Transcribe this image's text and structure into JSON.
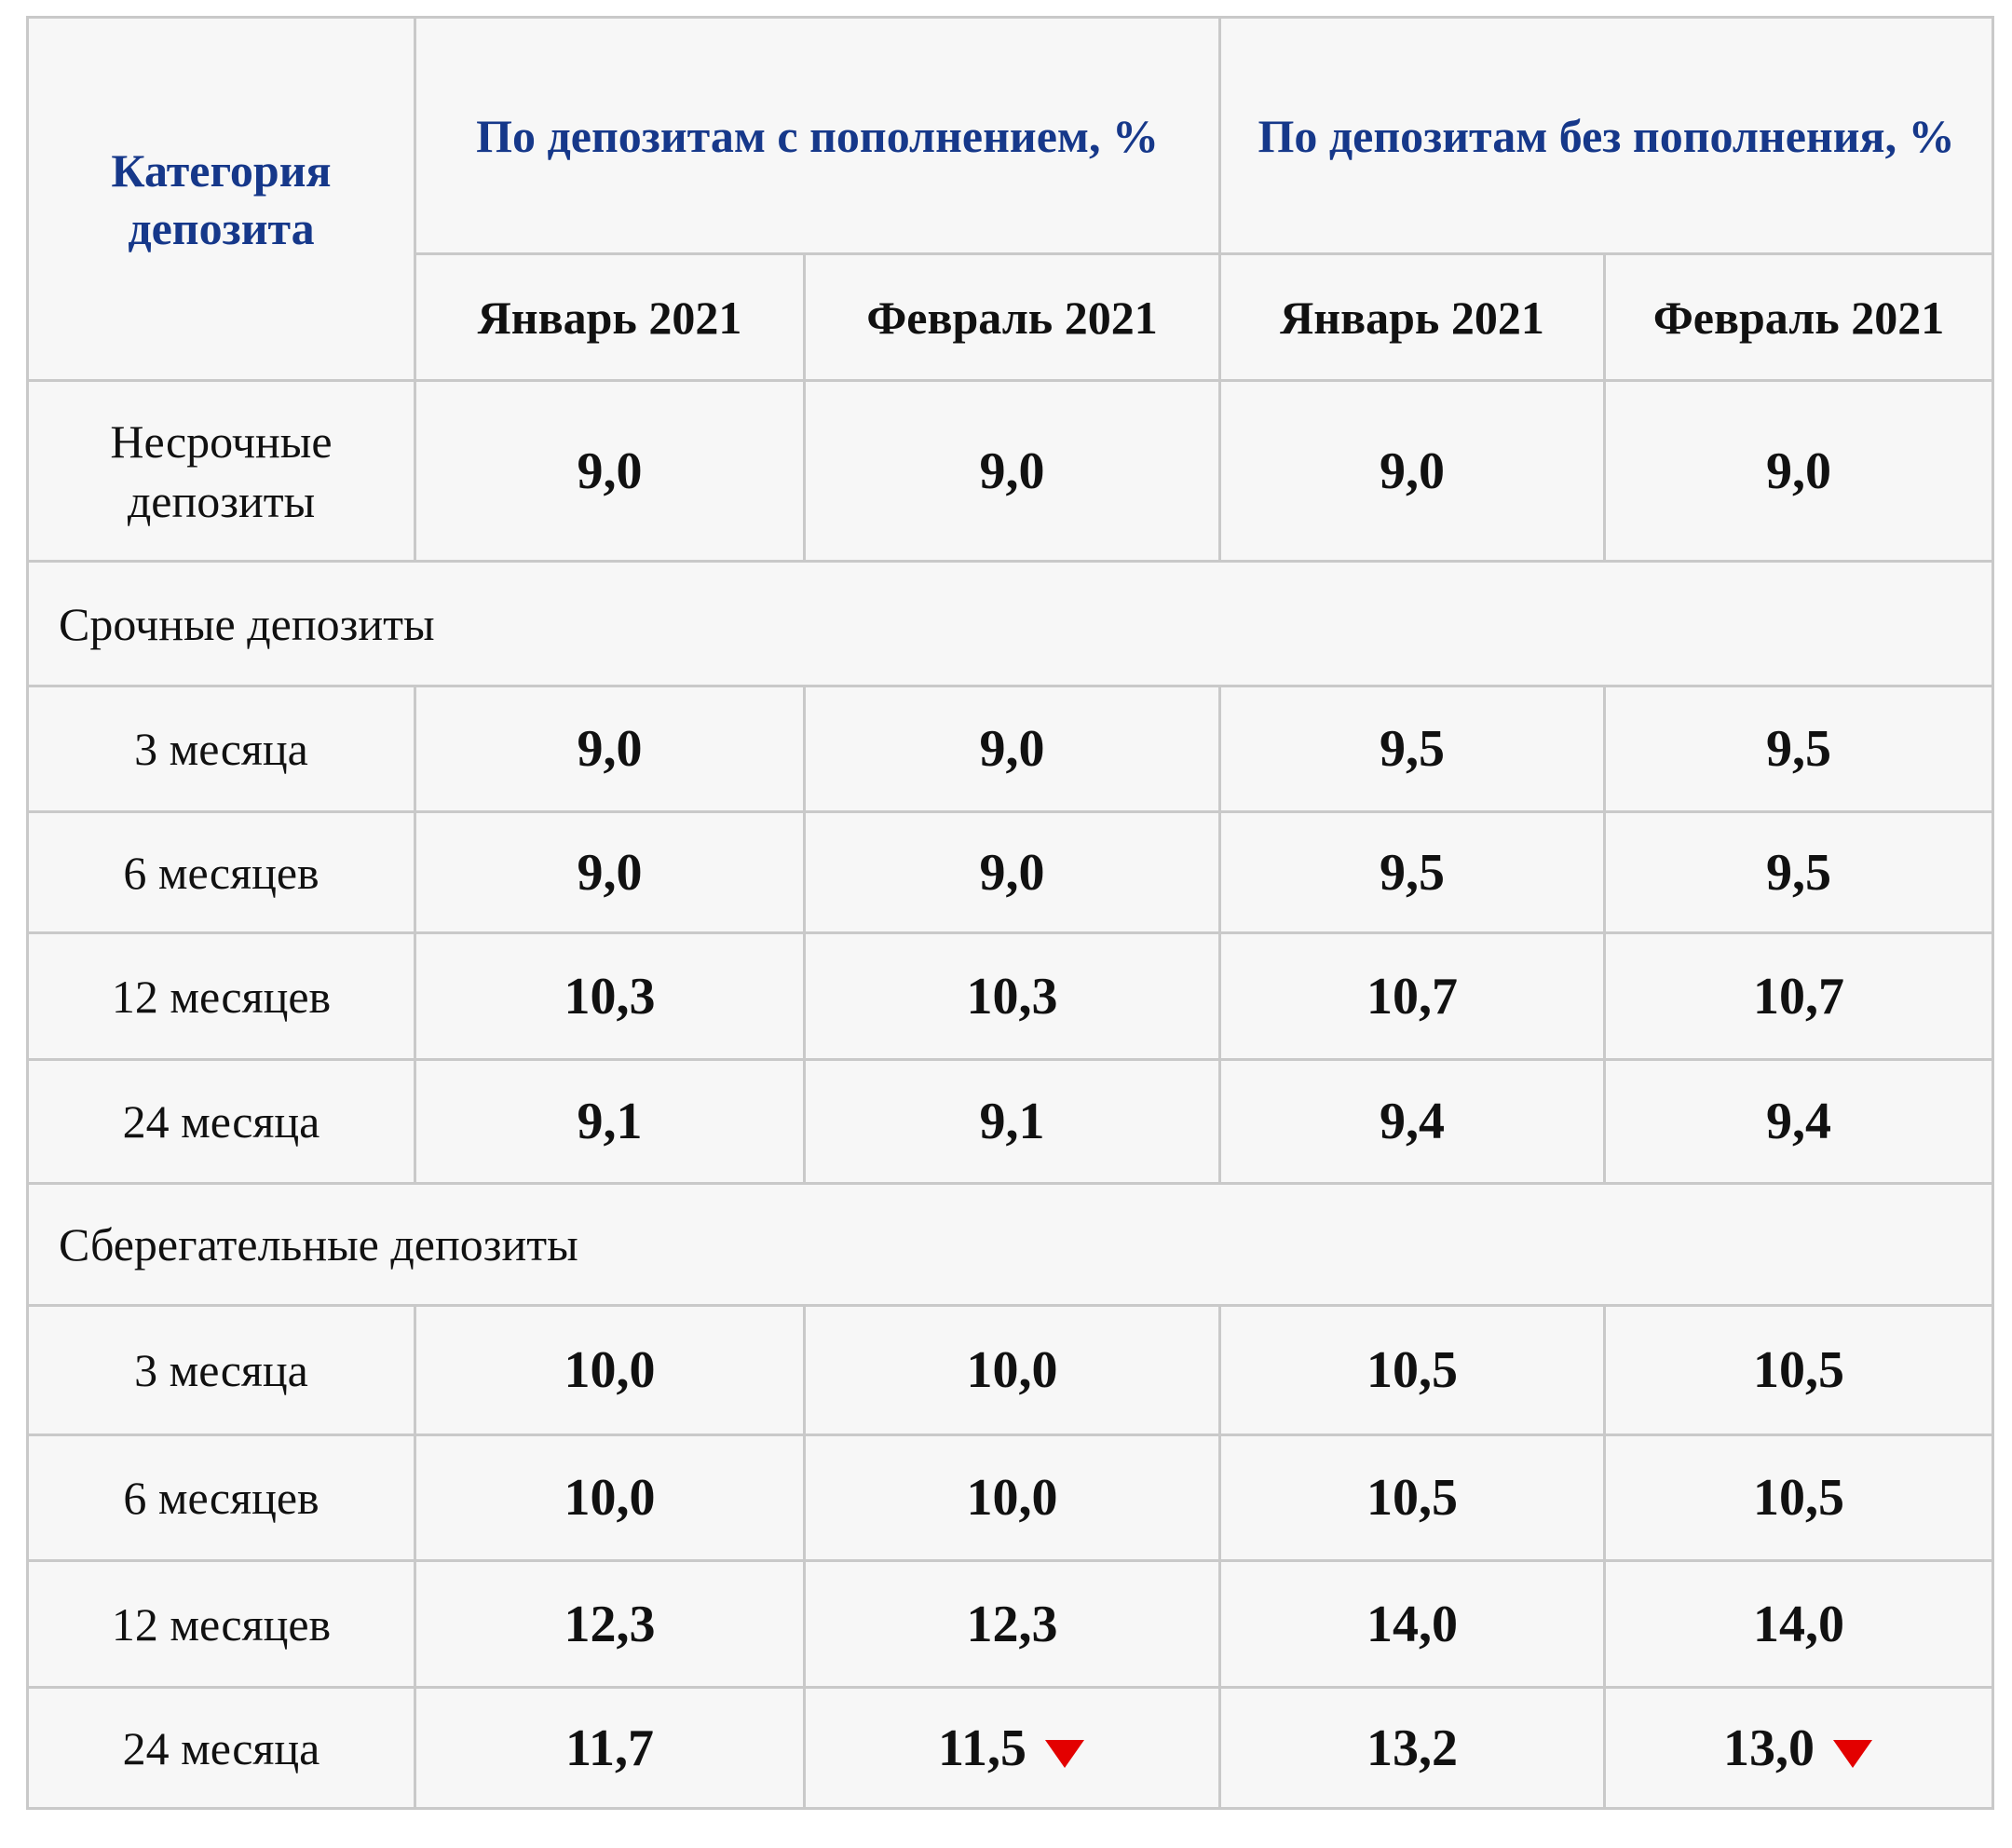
{
  "table": {
    "header": {
      "category": "Категория депозита",
      "groups": [
        "По депозитам с пополнением, %",
        "По депозитам без пополнения, %"
      ],
      "months": [
        "Январь 2021",
        "Февраль 2021",
        "Январь 2021",
        "Февраль 2021"
      ]
    },
    "rows": [
      {
        "label": "Несрочные депозиты",
        "values": [
          "9,0",
          "9,0",
          "9,0",
          "9,0"
        ]
      },
      {
        "section": "Срочные депозиты"
      },
      {
        "label": "3 месяца",
        "values": [
          "9,0",
          "9,0",
          "9,5",
          "9,5"
        ]
      },
      {
        "label": "6 месяцев",
        "values": [
          "9,0",
          "9,0",
          "9,5",
          "9,5"
        ]
      },
      {
        "label": "12 месяцев",
        "values": [
          "10,3",
          "10,3",
          "10,7",
          "10,7"
        ]
      },
      {
        "label": "24 месяца",
        "values": [
          "9,1",
          "9,1",
          "9,4",
          "9,4"
        ]
      },
      {
        "section": "Сберегательные депозиты"
      },
      {
        "label": "3 месяца",
        "values": [
          "10,0",
          "10,0",
          "10,5",
          "10,5"
        ]
      },
      {
        "label": "6 месяцев",
        "values": [
          "10,0",
          "10,0",
          "10,5",
          "10,5"
        ]
      },
      {
        "label": "12 месяцев",
        "values": [
          "12,3",
          "12,3",
          "14,0",
          "14,0"
        ]
      },
      {
        "label": "24 месяца",
        "values": [
          "11,7",
          "11,5",
          "13,2",
          "13,0"
        ]
      }
    ]
  }
}
